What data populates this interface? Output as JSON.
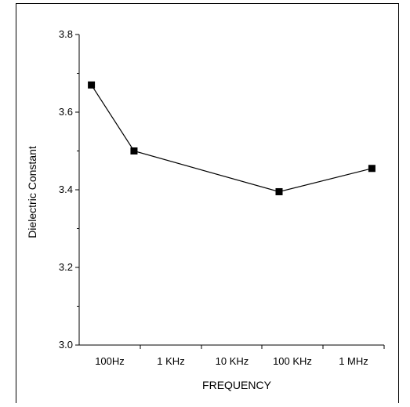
{
  "chart_data": {
    "type": "line",
    "title": "",
    "xlabel": "FREQUENCY",
    "ylabel": "Dielectric Constant",
    "x_tick_labels": [
      "100Hz",
      "1 KHz",
      "10 KHz",
      "100 KHz",
      "1 MHz"
    ],
    "y_tick_labels": [
      "3.0",
      "3.2",
      "3.4",
      "3.6",
      "3.8"
    ],
    "ylim": [
      3.0,
      3.8
    ],
    "y_major_step": 0.2,
    "y_minor_step": 0.1,
    "x_scale": "log",
    "series": [
      {
        "marker": "square",
        "color": "#000000",
        "points": [
          {
            "x": "50 Hz",
            "y": 3.67
          },
          {
            "x": "250 Hz",
            "y": 3.5
          },
          {
            "x": "60 KHz",
            "y": 3.395
          },
          {
            "x": "2 MHz",
            "y": 3.455
          }
        ]
      }
    ],
    "grid": false,
    "legend": "none"
  }
}
